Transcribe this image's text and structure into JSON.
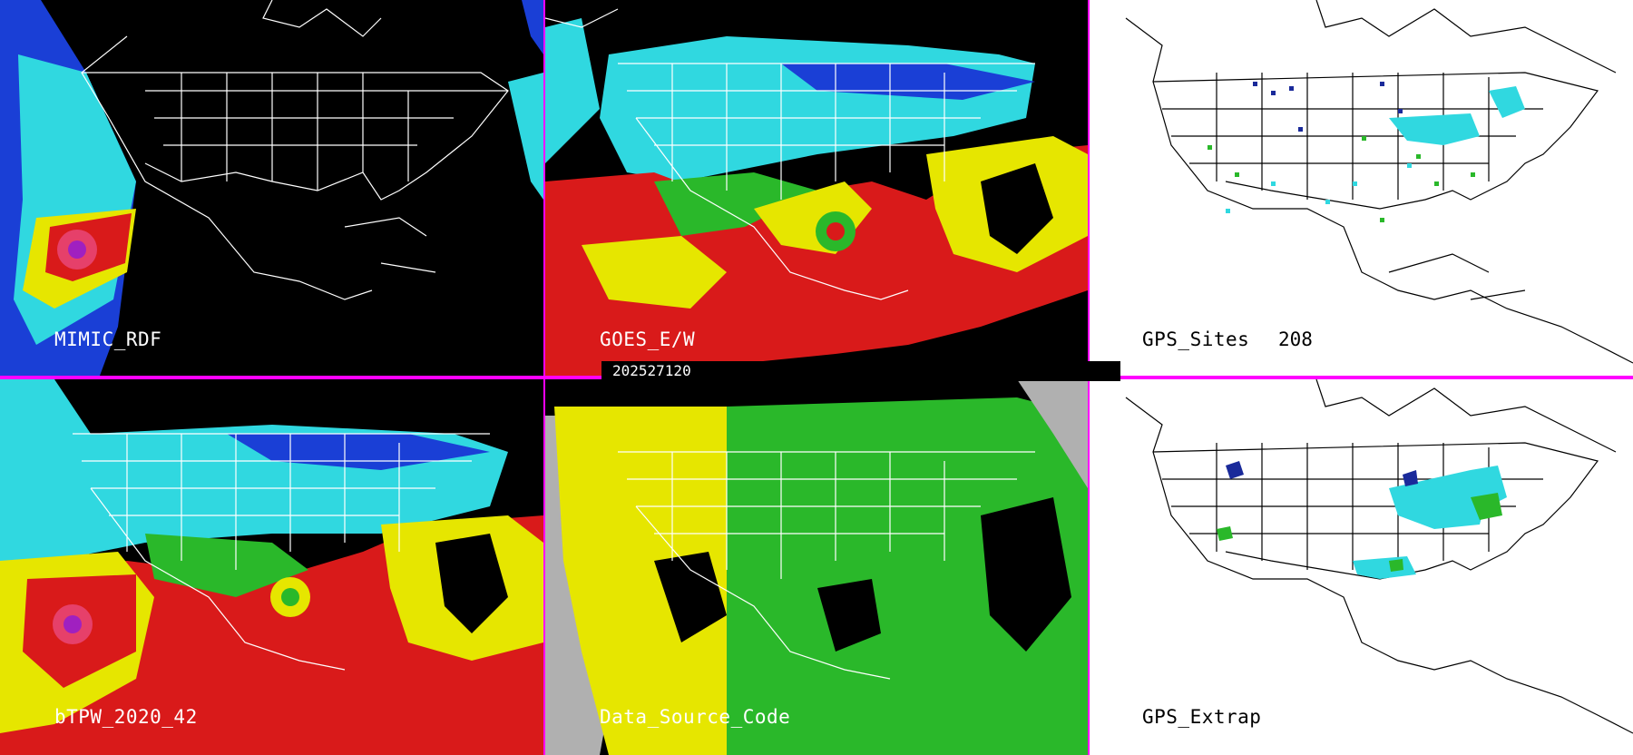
{
  "timestamp": "202527120",
  "panels": [
    {
      "id": "mimic",
      "label": "MIMIC_RDF"
    },
    {
      "id": "goes",
      "label": "GOES_E/W"
    },
    {
      "id": "gps-sites",
      "label": "GPS_Sites",
      "count": "208"
    },
    {
      "id": "btpw",
      "label": "bTPW_2020_42"
    },
    {
      "id": "source",
      "label": "Data_Source_Code"
    },
    {
      "id": "gps-extrap",
      "label": "GPS_Extrap"
    }
  ],
  "colors": {
    "separator": "#ff00ff",
    "background_dark": "#000000",
    "background_light": "#ffffff",
    "coastline_on_dark": "#ffffff",
    "coastline_on_light": "#000000"
  }
}
